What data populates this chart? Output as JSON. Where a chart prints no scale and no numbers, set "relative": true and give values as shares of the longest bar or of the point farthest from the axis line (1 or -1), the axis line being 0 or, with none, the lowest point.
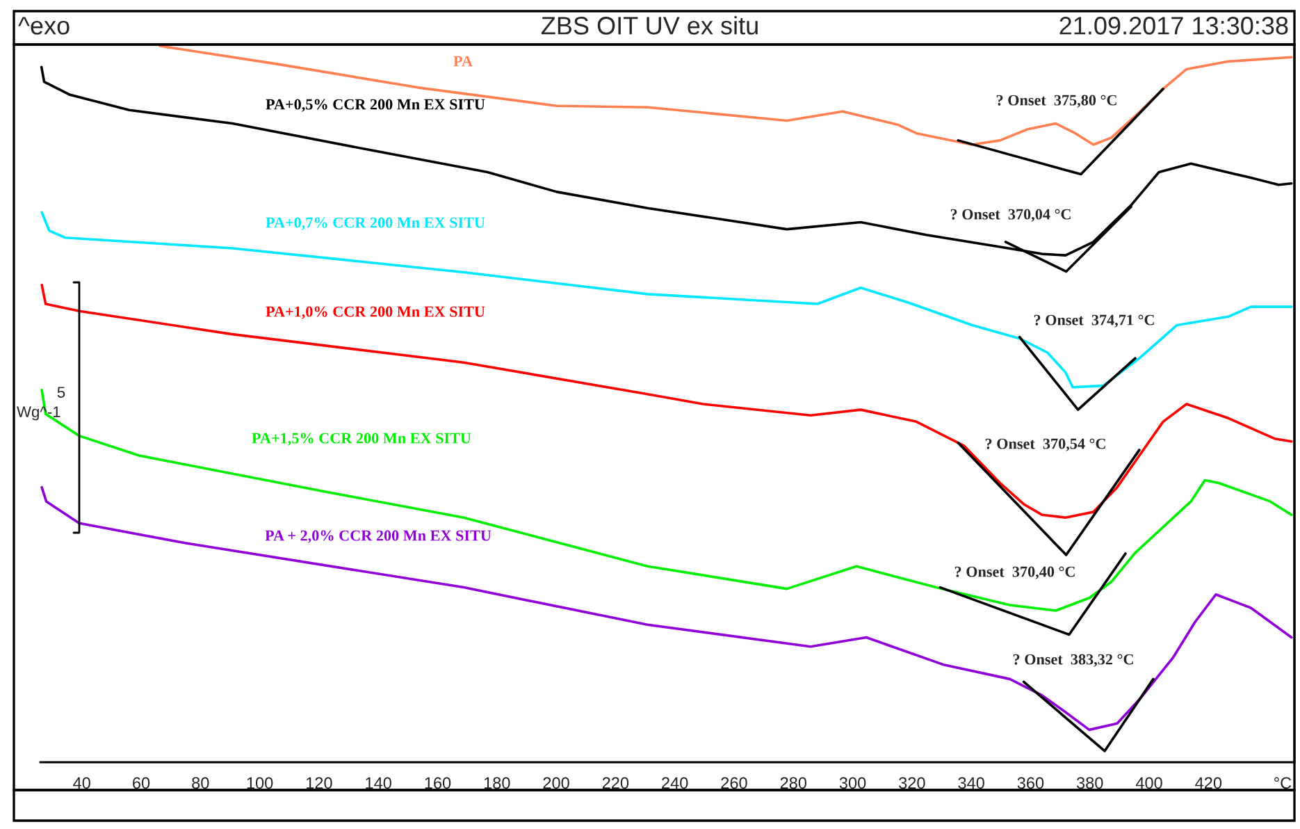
{
  "chart_data": {
    "type": "line",
    "title": "ZBS OIT UV ex situ",
    "subtitle": "21.09.2017 13:30:38",
    "relative": true,
    "tick_labels": "x",
    "legend": false,
    "grid": false,
    "marker": "none",
    "line_style": "solid",
    "xlim": [
      26,
      449
    ],
    "xticks": [
      40,
      60,
      80,
      100,
      120,
      140,
      160,
      180,
      200,
      220,
      240,
      260,
      280,
      300,
      320,
      340,
      360,
      380,
      400,
      420,
      {
        "value": 445,
        "label": "°C"
      }
    ],
    "annotations": [
      "^exo",
      "5",
      "Wg^-1",
      "? Onset  375,80 °C",
      "? Onset  370,04 °C",
      "? Onset  374,71 °C",
      "? Onset  370,54 °C",
      "? Onset  370,40 °C",
      "? Onset  383,32 °C"
    ],
    "series": [
      {
        "name": "PA",
        "color": "#ff7f50",
        "x": [
          66.3,
          106.3,
          153.3,
          200.2,
          230.8,
          277.8,
          296.6,
          315.4,
          321.5,
          340.3,
          349.7,
          359.1,
          368.5,
          375.1,
          381.2,
          387.3,
          396.7,
          404.7,
          412.6,
          426.7,
          448
        ],
        "values": [
          1.0,
          0.974,
          0.941,
          0.915,
          0.913,
          0.894,
          0.907,
          0.888,
          0.876,
          0.86,
          0.866,
          0.882,
          0.89,
          0.876,
          0.86,
          0.87,
          0.906,
          0.939,
          0.967,
          0.978,
          0.984
        ]
      },
      {
        "name": "PA+0,5% CCR 200 Mn EX SITU",
        "color": "#000000",
        "x": [
          26.4,
          27.3,
          35.8,
          56.0,
          90.8,
          137.7,
          176.8,
          200.2,
          230.8,
          277.8,
          302.7,
          324.8,
          349.7,
          363.8,
          371.8,
          381.2,
          393.9,
          403.3,
          414.1,
          434.3,
          443.7,
          448
        ],
        "values": [
          0.97,
          0.949,
          0.931,
          0.909,
          0.89,
          0.852,
          0.821,
          0.793,
          0.77,
          0.74,
          0.75,
          0.732,
          0.715,
          0.705,
          0.703,
          0.722,
          0.774,
          0.821,
          0.833,
          0.813,
          0.803,
          0.805
        ]
      },
      {
        "name": "PA+0,7% CCR 200 Mn EX SITU",
        "color": "#00e8ff",
        "x": [
          26.5,
          29,
          34.4,
          90.8,
          168.8,
          230.8,
          288.1,
          302.7,
          318.7,
          340.3,
          356.3,
          365.7,
          371.8,
          374.2,
          384.5,
          396.7,
          409.4,
          426.7,
          434.3,
          448
        ],
        "values": [
          0.764,
          0.738,
          0.728,
          0.713,
          0.679,
          0.648,
          0.634,
          0.657,
          0.636,
          0.604,
          0.585,
          0.565,
          0.537,
          0.516,
          0.518,
          0.557,
          0.604,
          0.616,
          0.63,
          0.63
        ]
      },
      {
        "name": "PA+1,0% CCR 200 Mn EX SITU",
        "color": "#ff0000",
        "x": [
          26.5,
          27.8,
          39.1,
          90.8,
          168.8,
          230.8,
          249.6,
          285.8,
          302.7,
          321.5,
          337.5,
          349.7,
          357.7,
          363.8,
          371.8,
          381.2,
          389.2,
          396.7,
          404.7,
          412.6,
          426.7,
          442.3,
          448
        ],
        "values": [
          0.661,
          0.634,
          0.624,
          0.591,
          0.551,
          0.506,
          0.492,
          0.476,
          0.484,
          0.467,
          0.433,
          0.38,
          0.35,
          0.335,
          0.331,
          0.339,
          0.374,
          0.419,
          0.467,
          0.492,
          0.472,
          0.443,
          0.439
        ]
      },
      {
        "name": "PA+1,5% CCR 200 Mn EX SITU",
        "color": "#00ee00",
        "x": [
          26.5,
          27.8,
          39.1,
          59.3,
          121.8,
          168.8,
          230.8,
          277.8,
          301.3,
          328.1,
          353.0,
          368.5,
          379.8,
          387.3,
          395.3,
          414.1,
          418.8,
          423.5,
          440.8,
          448
        ],
        "values": [
          0.512,
          0.478,
          0.447,
          0.419,
          0.368,
          0.331,
          0.262,
          0.23,
          0.262,
          0.232,
          0.207,
          0.199,
          0.217,
          0.24,
          0.281,
          0.354,
          0.384,
          0.38,
          0.354,
          0.335
        ]
      },
      {
        "name": "PA + 2,0% CCR 200 Mn EX SITU",
        "color": "#9000d8",
        "x": [
          26.5,
          28,
          39.1,
          74.8,
          168.8,
          230.8,
          285.8,
          304.6,
          330.9,
          353.0,
          363.8,
          371.8,
          379.8,
          389.2,
          396.7,
          408.0,
          415.5,
          422.5,
          434.3,
          448
        ],
        "values": [
          0.374,
          0.354,
          0.323,
          0.295,
          0.232,
          0.179,
          0.148,
          0.161,
          0.122,
          0.102,
          0.079,
          0.055,
          0.03,
          0.039,
          0.073,
          0.132,
          0.183,
          0.222,
          0.203,
          0.161
        ]
      },
      {
        "color": "#000000",
        "x": [
          335.6,
          377,
          404.7
        ],
        "values": [
          0.866,
          0.818,
          0.939
        ]
      },
      {
        "color": "#000000",
        "x": [
          351.6,
          372,
          393.9
        ],
        "values": [
          0.722,
          0.68,
          0.772
        ]
      },
      {
        "color": "#000000",
        "x": [
          356.3,
          376,
          395.3
        ],
        "values": [
          0.587,
          0.484,
          0.557
        ]
      },
      {
        "color": "#000000",
        "x": [
          335.6,
          372,
          396.7
        ],
        "values": [
          0.437,
          0.278,
          0.427
        ]
      },
      {
        "color": "#000000",
        "x": [
          329.5,
          373,
          392.0
        ],
        "values": [
          0.232,
          0.165,
          0.28
        ]
      },
      {
        "color": "#000000",
        "x": [
          357.7,
          385,
          401.4
        ],
        "values": [
          0.098,
          0.0,
          0.102
        ]
      }
    ]
  }
}
